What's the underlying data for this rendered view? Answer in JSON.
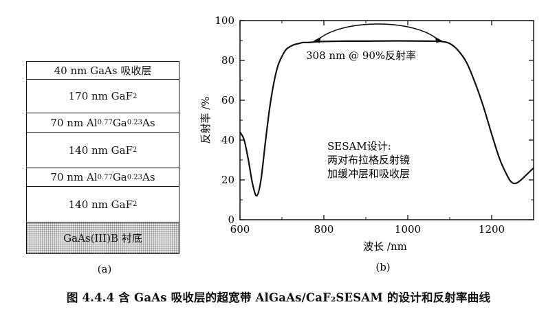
{
  "stack": {
    "label": "(a)",
    "layers": [
      {
        "text": "40 nm GaAs 吸收层"
      },
      {
        "text": "170 nm GaF",
        "sub": "2"
      },
      {
        "text": "70 nm Al",
        "sub1": "0.77",
        "mid": "Ga",
        "sub2": "0.23",
        "end": "As"
      },
      {
        "text": "140 nm GaF",
        "sub": "2"
      },
      {
        "text": "70 nm Al",
        "sub1": "0.77",
        "mid": "Ga",
        "sub2": "0.23",
        "end": "As"
      },
      {
        "text": "140 nm GaF",
        "sub": "2"
      },
      {
        "text": "GaAs(III)B 衬底"
      }
    ]
  },
  "chart_data": {
    "type": "line",
    "label": "(b)",
    "xlabel": "波长 /nm",
    "ylabel": "反射率 /%",
    "xlim": [
      600,
      1300
    ],
    "ylim": [
      0,
      100
    ],
    "xticks": [
      600,
      800,
      1000,
      1200
    ],
    "yticks": [
      0,
      20,
      40,
      60,
      80,
      100
    ],
    "x": [
      600,
      610,
      620,
      630,
      640,
      650,
      660,
      670,
      680,
      690,
      700,
      710,
      720,
      730,
      740,
      750,
      760,
      780,
      800,
      850,
      900,
      950,
      1000,
      1050,
      1080,
      1100,
      1120,
      1140,
      1160,
      1180,
      1200,
      1220,
      1240,
      1250,
      1260,
      1270,
      1280,
      1300
    ],
    "y": [
      44,
      40,
      30,
      18,
      12,
      20,
      38,
      55,
      68,
      77,
      82,
      85.5,
      87,
      88,
      88.5,
      89,
      89,
      89.3,
      89.5,
      89.7,
      89.7,
      89.8,
      89.8,
      89.7,
      89.5,
      88.5,
      85,
      79,
      69,
      57,
      43,
      30,
      21,
      18.5,
      18.5,
      20,
      22,
      26
    ],
    "annotation_width": "308 nm @ 90%反射率",
    "annotation_design": [
      "SESAM设计:",
      "两对布拉格反射镜",
      "加缓冲层和吸收层"
    ]
  },
  "figure_caption": "图 4.4.4   含 GaAs 吸收层的超宽带 AlGaAs/CaF₂SESAM 的设计和反射率曲线"
}
